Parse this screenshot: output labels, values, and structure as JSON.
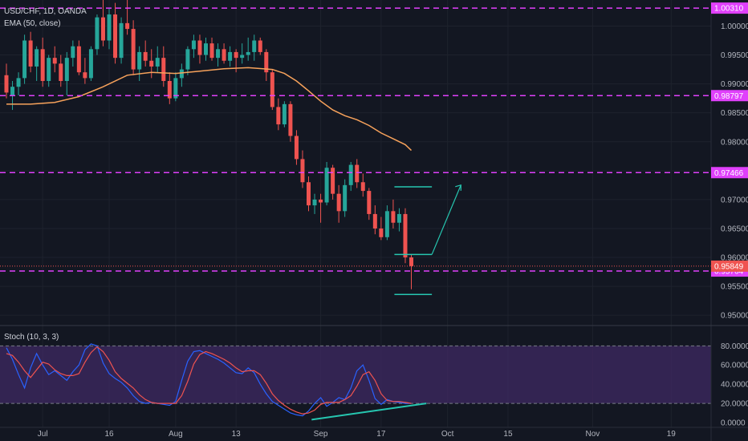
{
  "header": {
    "symbol": "USD/CHF, 1D, OANDA",
    "indicator": "EMA (50, close)",
    "stoch_label": "Stoch (10, 3, 3)"
  },
  "colors": {
    "background": "#131722",
    "up": "#26a69a",
    "down": "#ef5350",
    "ema": "#f7a25b",
    "level": "#e040fb",
    "last_price": "#ef5350",
    "drawing": "#26c6b0",
    "stoch_k": "#2962ff",
    "stoch_d": "#ef5350",
    "stoch_band": "#3f2a63"
  },
  "levels": [
    {
      "value": 1.0031,
      "label": "1.00310"
    },
    {
      "value": 0.98797,
      "label": "0.98797"
    },
    {
      "value": 0.97466,
      "label": "0.97466"
    },
    {
      "value": 0.95764,
      "label": "0.95764"
    }
  ],
  "last_price": {
    "value": 0.95849,
    "label": "0.95849"
  },
  "chart_data": {
    "type": "candlestick",
    "symbol": "USD/CHF",
    "interval": "1D",
    "source": "OANDA",
    "price_ticks": [
      "0.95000",
      "0.95500",
      "0.96000",
      "0.96500",
      "0.97000",
      "0.97500",
      "0.98000",
      "0.98500",
      "0.99000",
      "0.99500",
      "1.00000"
    ],
    "price_range": [
      0.9485,
      1.0045
    ],
    "x_ticks": [
      {
        "label": "Jul",
        "index": 6
      },
      {
        "label": "16",
        "index": 17
      },
      {
        "label": "Aug",
        "index": 28
      },
      {
        "label": "13",
        "index": 38
      },
      {
        "label": "Sep",
        "index": 52
      },
      {
        "label": "17",
        "index": 62
      },
      {
        "label": "Oct",
        "index": 73
      },
      {
        "label": "15",
        "index": 83
      },
      {
        "label": "Nov",
        "index": 97
      },
      {
        "label": "19",
        "index": 110
      }
    ],
    "candles": [
      [
        0.9915,
        0.9935,
        0.9875,
        0.9885
      ],
      [
        0.988,
        0.9905,
        0.9855,
        0.9895
      ],
      [
        0.9895,
        0.992,
        0.988,
        0.991
      ],
      [
        0.991,
        0.9985,
        0.99,
        0.9975
      ],
      [
        0.9975,
        0.999,
        0.992,
        0.993
      ],
      [
        0.993,
        0.9965,
        0.9905,
        0.996
      ],
      [
        0.996,
        0.998,
        0.9895,
        0.9905
      ],
      [
        0.9905,
        0.995,
        0.9895,
        0.9945
      ],
      [
        0.9945,
        0.9965,
        0.992,
        0.9935
      ],
      [
        0.9935,
        0.995,
        0.9895,
        0.9905
      ],
      [
        0.9905,
        0.9955,
        0.988,
        0.9945
      ],
      [
        0.9945,
        0.9975,
        0.993,
        0.9965
      ],
      [
        0.9965,
        0.9975,
        0.9915,
        0.992
      ],
      [
        0.992,
        0.9945,
        0.99,
        0.991
      ],
      [
        0.991,
        0.9965,
        0.9905,
        0.996
      ],
      [
        0.996,
        1.002,
        0.995,
        1.0015
      ],
      [
        1.0015,
        1.005,
        0.9965,
        0.9975
      ],
      [
        0.9975,
        1.003,
        0.996,
        1.002
      ],
      [
        1.002,
        1.004,
        0.9935,
        0.9945
      ],
      [
        0.9945,
        1.0015,
        0.9935,
        1.0005
      ],
      [
        1.0005,
        1.005,
        0.9985,
        0.9995
      ],
      [
        0.9995,
        1.001,
        0.9915,
        0.9925
      ],
      [
        0.9925,
        0.9965,
        0.9905,
        0.9955
      ],
      [
        0.9955,
        0.9975,
        0.993,
        0.994
      ],
      [
        0.994,
        0.996,
        0.991,
        0.993
      ],
      [
        0.993,
        0.9965,
        0.992,
        0.9945
      ],
      [
        0.9945,
        0.9965,
        0.9895,
        0.9905
      ],
      [
        0.9905,
        0.992,
        0.9865,
        0.9875
      ],
      [
        0.9875,
        0.992,
        0.987,
        0.991
      ],
      [
        0.991,
        0.9935,
        0.9895,
        0.9925
      ],
      [
        0.9925,
        0.9965,
        0.9915,
        0.996
      ],
      [
        0.996,
        0.9985,
        0.9945,
        0.9975
      ],
      [
        0.9975,
        0.9985,
        0.9935,
        0.995
      ],
      [
        0.995,
        0.998,
        0.994,
        0.997
      ],
      [
        0.997,
        0.998,
        0.994,
        0.9945
      ],
      [
        0.9945,
        0.997,
        0.993,
        0.996
      ],
      [
        0.996,
        0.997,
        0.9935,
        0.994
      ],
      [
        0.994,
        0.9965,
        0.993,
        0.9955
      ],
      [
        0.9955,
        0.996,
        0.992,
        0.9945
      ],
      [
        0.9945,
        0.997,
        0.9935,
        0.995
      ],
      [
        0.995,
        0.998,
        0.994,
        0.9955
      ],
      [
        0.9955,
        0.9985,
        0.994,
        0.9975
      ],
      [
        0.9975,
        0.998,
        0.995,
        0.9955
      ],
      [
        0.9955,
        0.996,
        0.9905,
        0.992
      ],
      [
        0.992,
        0.9925,
        0.9855,
        0.986
      ],
      [
        0.986,
        0.9875,
        0.982,
        0.983
      ],
      [
        0.983,
        0.987,
        0.9825,
        0.9865
      ],
      [
        0.9865,
        0.987,
        0.98,
        0.981
      ],
      [
        0.981,
        0.982,
        0.976,
        0.977
      ],
      [
        0.977,
        0.9785,
        0.972,
        0.973
      ],
      [
        0.973,
        0.974,
        0.968,
        0.969
      ],
      [
        0.969,
        0.971,
        0.9675,
        0.97
      ],
      [
        0.97,
        0.971,
        0.966,
        0.9695
      ],
      [
        0.9695,
        0.9765,
        0.969,
        0.9755
      ],
      [
        0.9755,
        0.976,
        0.97,
        0.971
      ],
      [
        0.971,
        0.9725,
        0.966,
        0.968
      ],
      [
        0.968,
        0.9735,
        0.967,
        0.9725
      ],
      [
        0.9725,
        0.9765,
        0.9715,
        0.976
      ],
      [
        0.976,
        0.977,
        0.972,
        0.973
      ],
      [
        0.973,
        0.9745,
        0.9705,
        0.9715
      ],
      [
        0.9715,
        0.972,
        0.9665,
        0.9675
      ],
      [
        0.9675,
        0.969,
        0.964,
        0.965
      ],
      [
        0.965,
        0.967,
        0.963,
        0.9635
      ],
      [
        0.9635,
        0.969,
        0.963,
        0.968
      ],
      [
        0.968,
        0.97,
        0.965,
        0.966
      ],
      [
        0.966,
        0.9685,
        0.9645,
        0.9675
      ],
      [
        0.9675,
        0.9685,
        0.959,
        0.96
      ],
      [
        0.96,
        0.9605,
        0.9545,
        0.9585
      ]
    ],
    "ema50": [
      [
        0,
        0.9865
      ],
      [
        4,
        0.9865
      ],
      [
        8,
        0.9868
      ],
      [
        12,
        0.9878
      ],
      [
        16,
        0.9895
      ],
      [
        20,
        0.9915
      ],
      [
        24,
        0.992
      ],
      [
        28,
        0.9918
      ],
      [
        32,
        0.9922
      ],
      [
        36,
        0.9926
      ],
      [
        40,
        0.9928
      ],
      [
        44,
        0.9925
      ],
      [
        46,
        0.9918
      ],
      [
        48,
        0.9905
      ],
      [
        50,
        0.9888
      ],
      [
        52,
        0.987
      ],
      [
        54,
        0.9855
      ],
      [
        56,
        0.9845
      ],
      [
        58,
        0.9838
      ],
      [
        60,
        0.9828
      ],
      [
        62,
        0.9815
      ],
      [
        64,
        0.9805
      ],
      [
        66,
        0.9795
      ],
      [
        67,
        0.9785
      ]
    ],
    "stochastic": {
      "k": [
        78,
        66,
        50,
        36,
        57,
        72,
        60,
        50,
        54,
        49,
        44,
        53,
        60,
        76,
        82,
        80,
        62,
        51,
        46,
        42,
        36,
        28,
        22,
        20,
        21,
        20,
        19,
        18,
        22,
        44,
        64,
        74,
        75,
        72,
        69,
        66,
        62,
        57,
        52,
        51,
        57,
        52,
        40,
        30,
        22,
        18,
        14,
        10,
        8,
        7,
        12,
        20,
        26,
        17,
        21,
        26,
        24,
        36,
        54,
        60,
        44,
        25,
        19,
        24,
        22,
        21,
        20,
        20
      ],
      "d": [
        72,
        70,
        63,
        54,
        47,
        55,
        63,
        61,
        55,
        51,
        49,
        49,
        51,
        63,
        73,
        79,
        74,
        65,
        53,
        46,
        41,
        36,
        29,
        24,
        21,
        20,
        20,
        20,
        20,
        28,
        43,
        61,
        71,
        74,
        72,
        69,
        66,
        62,
        57,
        53,
        54,
        54,
        50,
        41,
        30,
        23,
        18,
        14,
        11,
        9,
        10,
        13,
        19,
        21,
        21,
        21,
        24,
        28,
        38,
        50,
        53,
        44,
        30,
        23,
        22,
        22,
        21,
        20
      ],
      "ticks": [
        "0.0000",
        "20.0000",
        "40.0000",
        "60.0000",
        "80.0000"
      ],
      "upper_band": 80,
      "lower_band": 20
    }
  }
}
